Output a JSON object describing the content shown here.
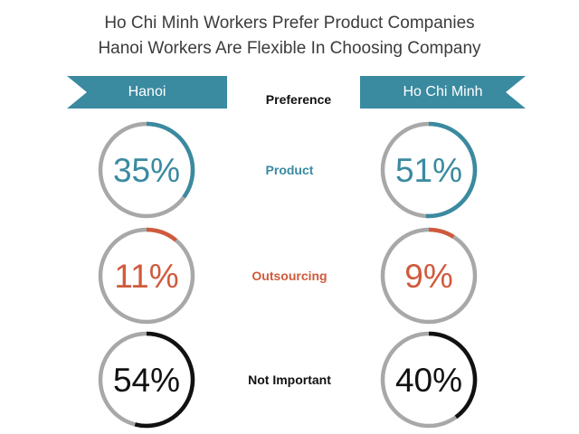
{
  "title_lines": [
    "Ho Chi Minh Workers Prefer Product Companies",
    "Hanoi Workers Are Flexible In Choosing Company"
  ],
  "header": {
    "left_city": "Hanoi",
    "right_city": "Ho Chi Minh",
    "middle": "Preference"
  },
  "colors": {
    "ribbon": "#3a8aa0",
    "track": "#a8a8a8"
  },
  "chart_data": {
    "type": "donut",
    "title": "Ho Chi Minh Workers Prefer Product Companies / Hanoi Workers Are Flexible In Choosing Company",
    "columns": [
      "Hanoi",
      "Ho Chi Minh"
    ],
    "rows": [
      {
        "label": "Product",
        "color": "#3a8aa0",
        "values": [
          35,
          51
        ],
        "display": [
          "35%",
          "51%"
        ]
      },
      {
        "label": "Outsourcing",
        "color": "#cf5a3c",
        "values": [
          11,
          9
        ],
        "display": [
          "11%",
          "9%"
        ]
      },
      {
        "label": "Not Important",
        "color": "#111111",
        "values": [
          54,
          40
        ],
        "display": [
          "54%",
          "40%"
        ]
      }
    ]
  }
}
